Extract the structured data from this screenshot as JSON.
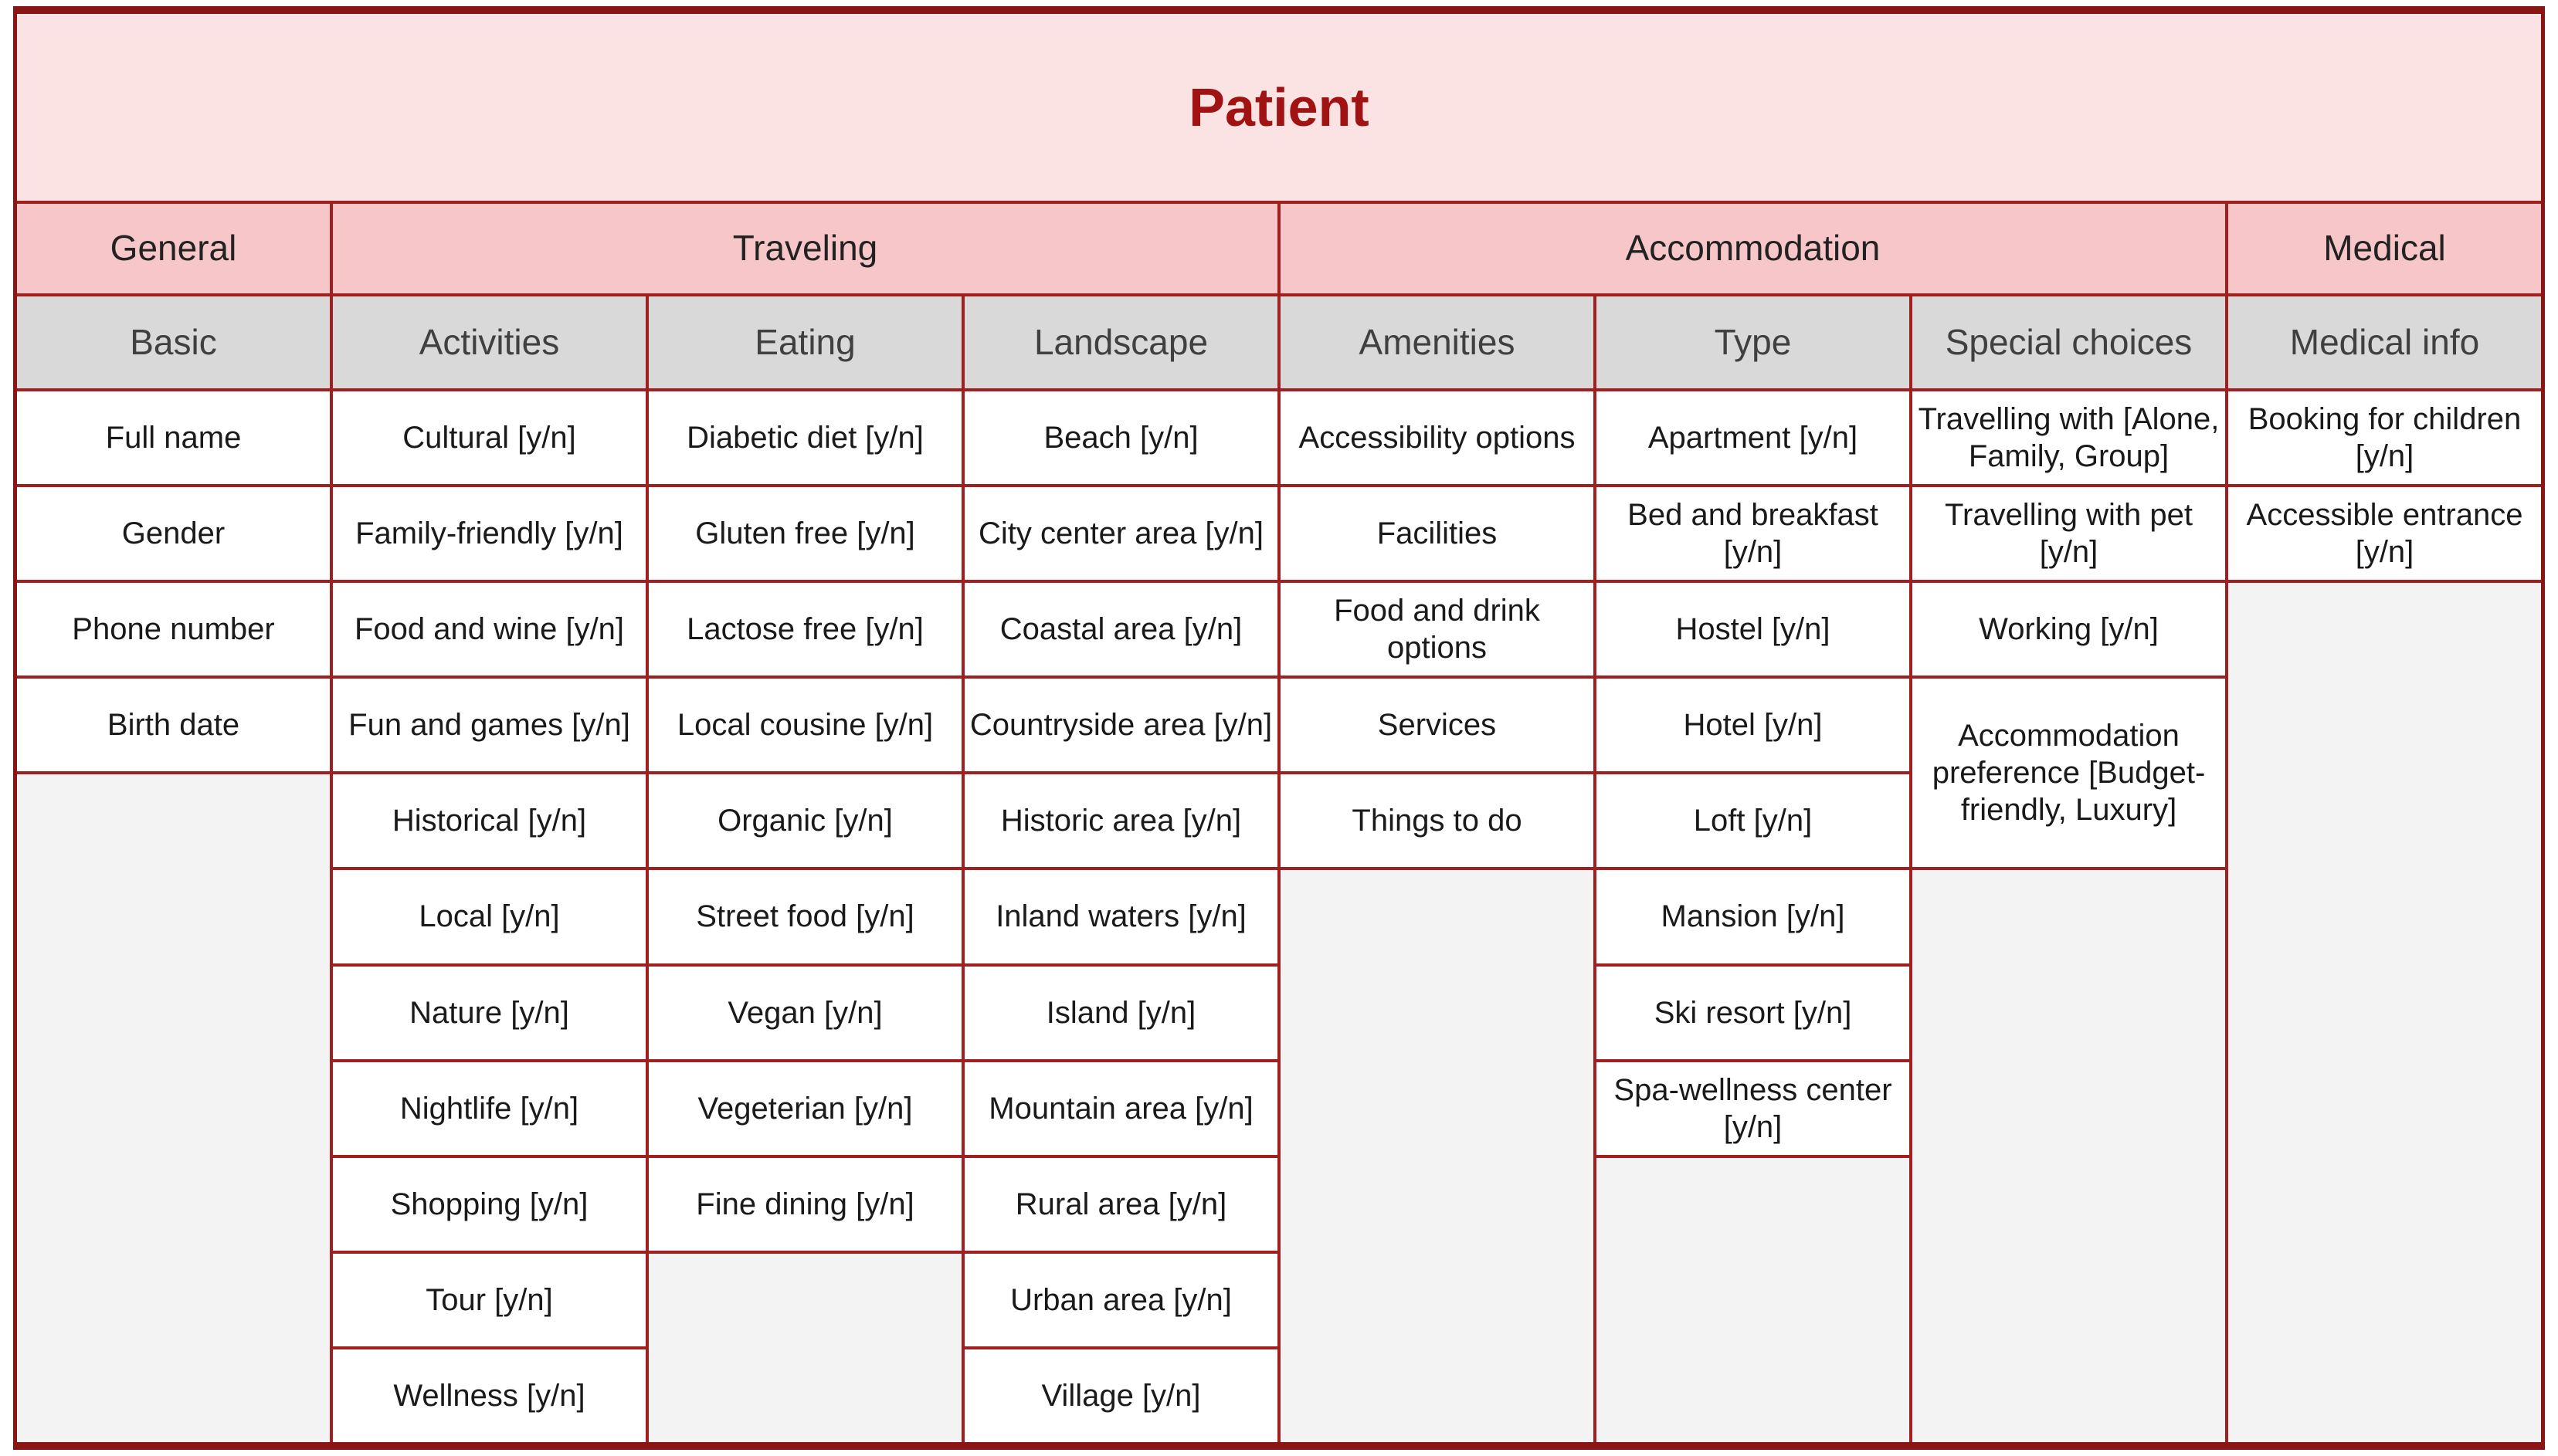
{
  "title": "Patient",
  "colors": {
    "outer_border": "#8a1515",
    "inner_border": "#a02020",
    "title_bg": "#fbe3e3",
    "title_text": "#a11212",
    "group_header_bg": "#f6c6c8",
    "subheader_bg": "#d9d9d9",
    "cell_bg": "#ffffff",
    "empty_region_bg": "#f4f3f3"
  },
  "groups": [
    {
      "label": "General"
    },
    {
      "label": "Traveling"
    },
    {
      "label": "Accommodation"
    },
    {
      "label": "Medical"
    }
  ],
  "columns": [
    {
      "header": "Basic",
      "cells": [
        "Full name",
        "Gender",
        "Phone number",
        "Birth date"
      ]
    },
    {
      "header": "Activities",
      "cells": [
        "Cultural [y/n]",
        "Family-friendly [y/n]",
        "Food and wine [y/n]",
        "Fun and games [y/n]",
        "Historical [y/n]",
        "Local [y/n]",
        "Nature [y/n]",
        "Nightlife [y/n]",
        "Shopping [y/n]",
        "Tour [y/n]",
        "Wellness [y/n]"
      ]
    },
    {
      "header": "Eating",
      "cells": [
        "Diabetic diet [y/n]",
        "Gluten free [y/n]",
        "Lactose free [y/n]",
        "Local cousine [y/n]",
        "Organic [y/n]",
        "Street food [y/n]",
        "Vegan [y/n]",
        "Vegeterian [y/n]",
        "Fine dining [y/n]"
      ]
    },
    {
      "header": "Landscape",
      "cells": [
        "Beach [y/n]",
        "City center area [y/n]",
        "Coastal area [y/n]",
        "Countryside area [y/n]",
        "Historic area [y/n]",
        "Inland waters [y/n]",
        "Island [y/n]",
        "Mountain area [y/n]",
        "Rural area [y/n]",
        "Urban area [y/n]",
        "Village [y/n]"
      ]
    },
    {
      "header": "Amenities",
      "cells": [
        "Accessibility options",
        "Facilities",
        "Food and drink options",
        "Services",
        "Things to do"
      ]
    },
    {
      "header": "Type",
      "cells": [
        "Apartment [y/n]",
        "Bed and breakfast [y/n]",
        "Hostel [y/n]",
        "Hotel [y/n]",
        "Loft [y/n]",
        "Mansion [y/n]",
        "Ski resort [y/n]",
        "Spa-wellness center [y/n]"
      ]
    },
    {
      "header": "Special choices",
      "cells": [
        "Travelling with [Alone, Family, Group]",
        "Travelling with pet [y/n]",
        "Working [y/n]",
        "Accommodation preference [Budget-friendly, Luxury]"
      ]
    },
    {
      "header": "Medical info",
      "cells": [
        "Booking for children [y/n]",
        "Accessible entrance [y/n]"
      ]
    }
  ]
}
